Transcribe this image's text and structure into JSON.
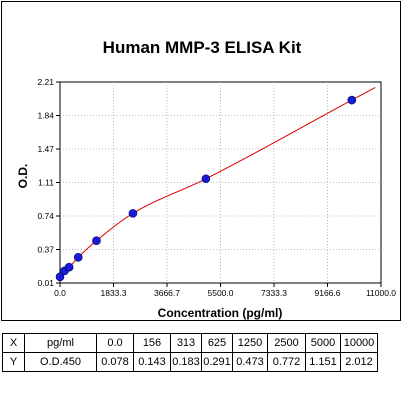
{
  "chart_data": {
    "type": "scatter",
    "title": "Human MMP-3 ELISA Kit",
    "xlabel": "Concentration (pg/ml)",
    "ylabel": "O.D.",
    "xlim": [
      0,
      11000
    ],
    "ylim": [
      0.01,
      2.21
    ],
    "x_ticks": [
      "0.0",
      "1833.3",
      "3666.7",
      "5500.0",
      "7333.3",
      "9166.6",
      "11000.0"
    ],
    "y_ticks": [
      "0.01",
      "0.37",
      "0.74",
      "1.11",
      "1.47",
      "1.84",
      "2.21"
    ],
    "point_color": "#1a1adb",
    "curve_color": "#e00000",
    "grid": true,
    "series": [
      {
        "x": [
          0,
          156,
          313,
          625,
          1250,
          2500,
          5000,
          10000
        ],
        "y": [
          0.078,
          0.143,
          0.183,
          0.291,
          0.473,
          0.772,
          1.151,
          2.012
        ]
      }
    ]
  },
  "table": {
    "row1": [
      "X",
      "pg/ml",
      "0.0",
      "156",
      "313",
      "625",
      "1250",
      "2500",
      "5000",
      "10000"
    ],
    "row2": [
      "Y",
      "O.D.450",
      "0.078",
      "0.143",
      "0.183",
      "0.291",
      "0.473",
      "0.772",
      "1.151",
      "2.012"
    ]
  }
}
